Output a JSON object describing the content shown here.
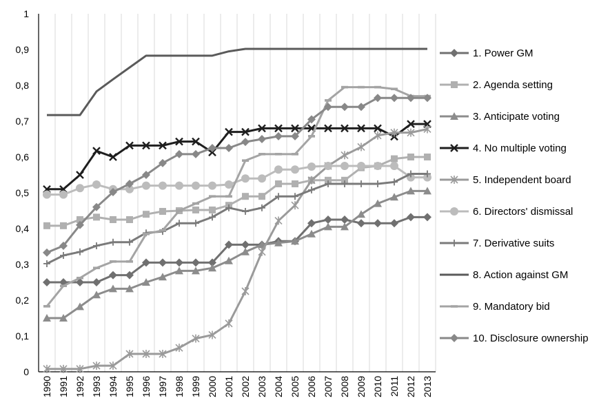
{
  "chart_data": {
    "type": "line",
    "x": [
      1990,
      1991,
      1992,
      1993,
      1994,
      1995,
      1996,
      1997,
      1998,
      1999,
      2000,
      2001,
      2002,
      2003,
      2004,
      2005,
      2006,
      2007,
      2008,
      2009,
      2010,
      2011,
      2012,
      2013
    ],
    "ylim": [
      0,
      1
    ],
    "yticks": [
      "0",
      "0,1",
      "0,2",
      "0,3",
      "0,4",
      "0,5",
      "0,6",
      "0,7",
      "0,8",
      "0,9",
      "1"
    ],
    "xticks": [
      "1990",
      "1991",
      "1992",
      "1993",
      "1994",
      "1995",
      "1996",
      "1997",
      "1998",
      "1999",
      "2000",
      "2001",
      "2002",
      "2003",
      "2004",
      "2005",
      "2006",
      "2007",
      "2008",
      "2009",
      "2010",
      "2011",
      "2012",
      "2013"
    ],
    "grid": "vertical",
    "legend_position": "right",
    "series": [
      {
        "name": "1. Power GM",
        "color": "#707070",
        "marker": "diamond",
        "values": [
          0.25,
          0.25,
          0.25,
          0.25,
          0.27,
          0.27,
          0.305,
          0.305,
          0.305,
          0.305,
          0.305,
          0.355,
          0.355,
          0.355,
          0.365,
          0.365,
          0.415,
          0.425,
          0.425,
          0.415,
          0.415,
          0.415,
          0.432,
          0.432
        ]
      },
      {
        "name": "2. Agenda setting",
        "color": "#b0b0b0",
        "marker": "square",
        "values": [
          0.408,
          0.408,
          0.425,
          0.432,
          0.425,
          0.425,
          0.44,
          0.448,
          0.45,
          0.452,
          0.452,
          0.465,
          0.49,
          0.49,
          0.525,
          0.525,
          0.535,
          0.535,
          0.535,
          0.57,
          0.575,
          0.595,
          0.6,
          0.6
        ]
      },
      {
        "name": "3. Anticipate voting",
        "color": "#8c8c8c",
        "marker": "triangle",
        "values": [
          0.15,
          0.15,
          0.182,
          0.215,
          0.232,
          0.232,
          0.25,
          0.265,
          0.282,
          0.282,
          0.29,
          0.31,
          0.335,
          0.355,
          0.36,
          0.365,
          0.385,
          0.405,
          0.405,
          0.44,
          0.47,
          0.488,
          0.505,
          0.505
        ]
      },
      {
        "name": "4. No multiple voting",
        "color": "#1e1e1e",
        "marker": "x",
        "values": [
          0.51,
          0.51,
          0.55,
          0.617,
          0.6,
          0.632,
          0.632,
          0.632,
          0.643,
          0.643,
          0.613,
          0.67,
          0.67,
          0.68,
          0.68,
          0.68,
          0.68,
          0.68,
          0.68,
          0.68,
          0.68,
          0.657,
          0.692,
          0.692
        ]
      },
      {
        "name": "5. Independent board",
        "color": "#9a9a9a",
        "marker": "star",
        "values": [
          0.008,
          0.008,
          0.008,
          0.017,
          0.017,
          0.05,
          0.05,
          0.05,
          0.067,
          0.093,
          0.103,
          0.135,
          0.225,
          0.335,
          0.422,
          0.465,
          0.535,
          0.575,
          0.605,
          0.628,
          0.66,
          0.668,
          0.668,
          0.678
        ]
      },
      {
        "name": "6. Directors' dismissal",
        "color": "#bcbcbc",
        "marker": "circle",
        "values": [
          0.495,
          0.495,
          0.513,
          0.523,
          0.51,
          0.51,
          0.52,
          0.52,
          0.52,
          0.52,
          0.52,
          0.523,
          0.54,
          0.54,
          0.565,
          0.565,
          0.573,
          0.575,
          0.575,
          0.575,
          0.575,
          0.575,
          0.543,
          0.543
        ]
      },
      {
        "name": "7. Derivative suits",
        "color": "#7a7a7a",
        "marker": "plus",
        "values": [
          0.302,
          0.325,
          0.335,
          0.352,
          0.362,
          0.362,
          0.388,
          0.392,
          0.415,
          0.415,
          0.432,
          0.458,
          0.448,
          0.458,
          0.49,
          0.49,
          0.508,
          0.525,
          0.525,
          0.525,
          0.525,
          0.53,
          0.553,
          0.553
        ]
      },
      {
        "name": "8. Action against GM",
        "color": "#5a5a5a",
        "marker": "none",
        "values": [
          0.717,
          0.717,
          0.717,
          0.783,
          0.817,
          0.85,
          0.883,
          0.883,
          0.883,
          0.883,
          0.883,
          0.895,
          0.902,
          0.902,
          0.902,
          0.902,
          0.902,
          0.902,
          0.902,
          0.902,
          0.902,
          0.902,
          0.902,
          0.902
        ]
      },
      {
        "name": "9. Mandatory bid",
        "color": "#a4a4a4",
        "marker": "dash",
        "values": [
          0.183,
          0.24,
          0.262,
          0.29,
          0.308,
          0.308,
          0.385,
          0.395,
          0.45,
          0.47,
          0.49,
          0.49,
          0.59,
          0.608,
          0.608,
          0.608,
          0.658,
          0.758,
          0.795,
          0.795,
          0.795,
          0.79,
          0.77,
          0.77
        ]
      },
      {
        "name": "10. Disclosure ownership",
        "color": "#888888",
        "marker": "diamond",
        "values": [
          0.333,
          0.352,
          0.41,
          0.46,
          0.502,
          0.525,
          0.55,
          0.583,
          0.608,
          0.608,
          0.625,
          0.625,
          0.642,
          0.65,
          0.658,
          0.658,
          0.705,
          0.74,
          0.74,
          0.74,
          0.765,
          0.765,
          0.765,
          0.765
        ]
      }
    ]
  }
}
